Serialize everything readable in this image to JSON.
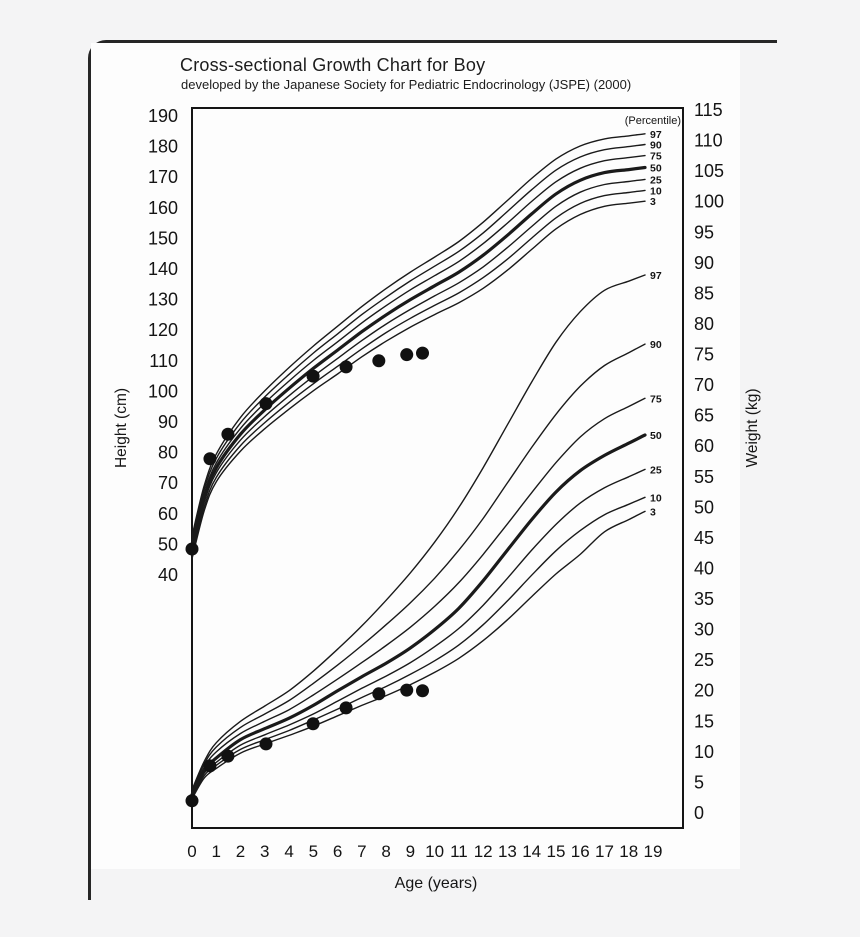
{
  "header": {
    "title": "Cross-sectional Growth Chart for Boy",
    "subtitle": "developed by the Japanese Society for Pediatric Endocrinology (JSPE) (2000)"
  },
  "colors": {
    "ink": "#1a1a1a",
    "paper": "#fdfdfd",
    "page_bg": "#f4f4f5",
    "point": "#111111"
  },
  "chart_data": {
    "type": "line",
    "title": "Cross-sectional Growth Chart for Boy",
    "subtitle": "developed by the Japanese Society for Pediatric Endocrinology (JSPE) (2000)",
    "percentile_header": "(Percentile)",
    "percentile_levels": [
      97,
      90,
      75,
      50,
      25,
      10,
      3
    ],
    "x_axis": {
      "label": "Age (years)",
      "range": [
        0,
        19
      ],
      "ticks": [
        0,
        1,
        2,
        3,
        4,
        5,
        6,
        7,
        8,
        9,
        10,
        11,
        12,
        13,
        14,
        15,
        16,
        17,
        18,
        19
      ]
    },
    "left_axis": {
      "label": "Height (cm)",
      "unit": "cm",
      "range": [
        190,
        40
      ],
      "ticks": [
        190,
        180,
        170,
        160,
        150,
        140,
        130,
        120,
        110,
        100,
        90,
        80,
        70,
        60,
        50,
        40
      ]
    },
    "right_axis": {
      "label": "Weight (kg)",
      "unit": "kg",
      "range": [
        115,
        0
      ],
      "ticks": [
        115,
        110,
        105,
        100,
        95,
        90,
        85,
        80,
        75,
        70,
        65,
        60,
        55,
        50,
        45,
        40,
        35,
        30,
        25,
        20,
        15,
        10,
        5,
        0
      ]
    },
    "ages": [
      0,
      0.5,
      1,
      2,
      3,
      4,
      5,
      6,
      7,
      8,
      9,
      10,
      11,
      12,
      13,
      14,
      15,
      16,
      17,
      18
    ],
    "height_series": [
      {
        "name": "97",
        "emphasis": false,
        "values": [
          52.7,
          69.1,
          79.5,
          91.5,
          100.2,
          107.8,
          114.8,
          121.3,
          127.7,
          133.6,
          139.0,
          143.9,
          149.0,
          155.3,
          162.4,
          169.6,
          175.9,
          180.2,
          182.5,
          183.5
        ]
      },
      {
        "name": "90",
        "emphasis": false,
        "values": [
          51.5,
          67.8,
          78.1,
          89.7,
          98.2,
          105.6,
          112.5,
          118.8,
          125.1,
          130.8,
          136.1,
          140.9,
          145.8,
          151.8,
          158.8,
          165.9,
          172.3,
          176.6,
          179.0,
          180.0
        ]
      },
      {
        "name": "75",
        "emphasis": false,
        "values": [
          50.3,
          66.4,
          76.6,
          87.9,
          96.2,
          103.4,
          110.1,
          116.2,
          122.4,
          128.0,
          133.2,
          137.8,
          142.5,
          148.3,
          155.0,
          162.1,
          168.5,
          172.9,
          175.4,
          176.4
        ]
      },
      {
        "name": "50",
        "emphasis": true,
        "values": [
          49.0,
          65.0,
          75.0,
          86.0,
          94.0,
          101.0,
          107.5,
          113.5,
          119.5,
          125.0,
          130.0,
          134.5,
          139.0,
          144.5,
          151.0,
          158.0,
          164.5,
          169.0,
          171.5,
          172.5
        ]
      },
      {
        "name": "25",
        "emphasis": false,
        "values": [
          47.7,
          63.6,
          73.4,
          84.1,
          91.8,
          98.6,
          104.9,
          110.8,
          116.6,
          122.0,
          126.8,
          131.2,
          135.5,
          140.7,
          147.0,
          153.9,
          160.5,
          165.1,
          167.6,
          168.6
        ]
      },
      {
        "name": "10",
        "emphasis": false,
        "values": [
          46.5,
          62.2,
          71.9,
          82.3,
          89.8,
          96.4,
          102.5,
          108.2,
          113.9,
          119.2,
          123.9,
          128.1,
          132.2,
          137.2,
          143.2,
          150.1,
          156.7,
          161.4,
          164.0,
          165.0
        ]
      },
      {
        "name": "3",
        "emphasis": false,
        "values": [
          45.3,
          60.9,
          70.5,
          80.5,
          87.8,
          94.2,
          100.2,
          105.7,
          111.3,
          116.4,
          121.0,
          125.1,
          129.0,
          133.7,
          139.6,
          146.4,
          153.1,
          157.8,
          160.5,
          161.5
        ]
      }
    ],
    "weight_series": [
      {
        "name": "97",
        "emphasis": false,
        "values": [
          3.8,
          8.4,
          11.5,
          15.0,
          17.5,
          20.0,
          23.2,
          26.8,
          30.6,
          34.8,
          39.3,
          44.3,
          50.0,
          56.5,
          63.5,
          70.5,
          77.0,
          82.0,
          85.5,
          87.0
        ]
      },
      {
        "name": "90",
        "emphasis": false,
        "values": [
          3.5,
          8.0,
          10.8,
          14.0,
          16.2,
          18.4,
          21.2,
          24.2,
          27.4,
          30.8,
          34.4,
          38.4,
          43.0,
          48.2,
          54.0,
          59.8,
          65.2,
          69.8,
          73.2,
          75.3
        ]
      },
      {
        "name": "75",
        "emphasis": false,
        "values": [
          3.25,
          7.5,
          10.0,
          13.0,
          15.0,
          16.9,
          19.3,
          21.9,
          24.6,
          27.4,
          30.4,
          33.8,
          37.7,
          42.3,
          47.3,
          52.4,
          57.3,
          61.5,
          64.5,
          66.5
        ]
      },
      {
        "name": "50",
        "emphasis": true,
        "values": [
          3.0,
          7.0,
          9.0,
          12.0,
          13.8,
          15.5,
          17.6,
          20.0,
          22.3,
          24.5,
          27.0,
          30.0,
          33.5,
          38.0,
          43.0,
          48.0,
          52.5,
          56.0,
          58.5,
          60.5
        ]
      },
      {
        "name": "25",
        "emphasis": false,
        "values": [
          2.75,
          6.5,
          8.3,
          11.1,
          12.8,
          14.4,
          16.2,
          18.3,
          20.4,
          22.4,
          24.6,
          27.2,
          30.2,
          34.0,
          38.4,
          43.0,
          47.2,
          50.7,
          53.2,
          55.0
        ]
      },
      {
        "name": "10",
        "emphasis": false,
        "values": [
          2.5,
          6.1,
          7.8,
          10.4,
          12.0,
          13.5,
          15.2,
          17.0,
          18.9,
          20.7,
          22.7,
          24.9,
          27.5,
          30.8,
          34.7,
          38.9,
          42.9,
          46.2,
          48.8,
          50.5
        ]
      },
      {
        "name": "3",
        "emphasis": false,
        "values": [
          2.3,
          5.7,
          7.3,
          9.8,
          11.3,
          12.7,
          14.2,
          15.9,
          17.6,
          19.2,
          21.0,
          23.0,
          25.3,
          28.2,
          31.6,
          35.4,
          39.1,
          42.3,
          46.0,
          48.0
        ]
      }
    ],
    "patient_height_points": [
      [
        0,
        48.5
      ],
      [
        0.74,
        78
      ],
      [
        1.48,
        86
      ],
      [
        3.05,
        96
      ],
      [
        4.99,
        105
      ],
      [
        6.35,
        108
      ],
      [
        7.7,
        110
      ],
      [
        8.85,
        112
      ],
      [
        9.5,
        112.5
      ]
    ],
    "patient_weight_points": [
      [
        0,
        2.0
      ],
      [
        0.74,
        7.7
      ],
      [
        1.48,
        9.3
      ],
      [
        3.05,
        11.3
      ],
      [
        4.99,
        14.6
      ],
      [
        6.35,
        17.2
      ],
      [
        7.7,
        19.5
      ],
      [
        8.85,
        20.1
      ],
      [
        9.5,
        20.0
      ]
    ]
  }
}
